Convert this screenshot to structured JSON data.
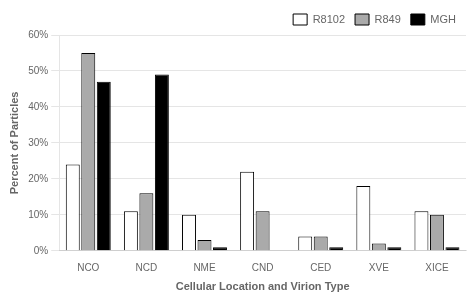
{
  "chart_data": {
    "type": "bar",
    "xlabel": "Cellular Location and Virion Type",
    "ylabel": "Percent of Particles",
    "categories": [
      "NCO",
      "NCD",
      "NME",
      "CND",
      "CED",
      "XVE",
      "XICE"
    ],
    "series": [
      {
        "name": "R8102",
        "color": "#ffffff",
        "values": [
          24,
          11,
          10,
          22,
          4,
          18,
          11
        ]
      },
      {
        "name": "R849",
        "color": "#aaaaaa",
        "values": [
          55,
          16,
          3,
          11,
          4,
          2,
          10
        ]
      },
      {
        "name": "MGH",
        "color": "#000000",
        "values": [
          47,
          49,
          1,
          0,
          1,
          1,
          1
        ]
      }
    ],
    "ylim": [
      0,
      60
    ],
    "yticks": [
      {
        "value": 0,
        "label": "0%"
      },
      {
        "value": 10,
        "label": "10%"
      },
      {
        "value": 20,
        "label": "20%"
      },
      {
        "value": 30,
        "label": "30%"
      },
      {
        "value": 40,
        "label": "40%"
      },
      {
        "value": 50,
        "label": "50%"
      },
      {
        "value": 60,
        "label": "60%"
      }
    ],
    "grid": true,
    "legend": "upper right"
  }
}
